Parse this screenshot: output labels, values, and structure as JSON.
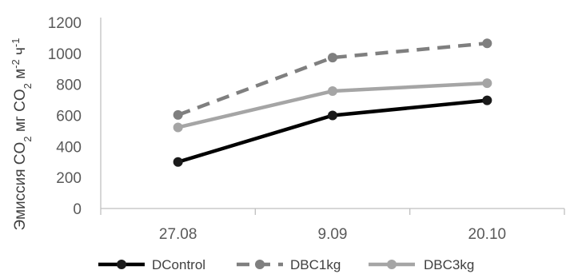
{
  "chart_data": {
    "type": "line",
    "categories": [
      "27.08",
      "9.09",
      "20.10"
    ],
    "ylim": [
      0,
      1200
    ],
    "yticks": [
      0,
      200,
      400,
      600,
      800,
      1000,
      1200
    ],
    "ylabel": {
      "parts": [
        {
          "text": "Эмиссия CO",
          "shift": "base"
        },
        {
          "text": "2",
          "shift": "sub"
        },
        {
          "text": " мг CO",
          "shift": "base"
        },
        {
          "text": "2",
          "shift": "sub"
        },
        {
          "text": " м",
          "shift": "base"
        },
        {
          "text": "-2",
          "shift": "super"
        },
        {
          "text": " ч",
          "shift": "base"
        },
        {
          "text": "-1",
          "shift": "super"
        }
      ]
    },
    "grid": false,
    "legend_position": "bottom",
    "series": [
      {
        "name": "DControl",
        "values": [
          300,
          600,
          697
        ],
        "color": "#000000",
        "marker_color": "#1a1a1a",
        "dash": "solid"
      },
      {
        "name": "DBC1kg",
        "values": [
          603,
          973,
          1065
        ],
        "color": "#7f7f7f",
        "marker_color": "#7f7f7f",
        "dash": "dashed"
      },
      {
        "name": "DBC3kg",
        "values": [
          523,
          757,
          808
        ],
        "color": "#a5a5a5",
        "marker_color": "#a5a5a5",
        "dash": "solid"
      }
    ]
  }
}
